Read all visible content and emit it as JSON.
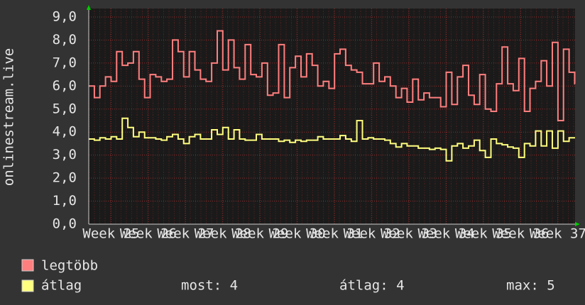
{
  "chart_data": {
    "type": "step-line",
    "y_label": "onlinestream.live",
    "x": [
      24.4,
      24.55,
      24.7,
      24.85,
      25,
      25.15,
      25.3,
      25.45,
      25.6,
      25.75,
      25.9,
      26.05,
      26.2,
      26.35,
      26.5,
      26.65,
      26.8,
      26.95,
      27.1,
      27.25,
      27.4,
      27.55,
      27.7,
      27.85,
      28,
      28.15,
      28.3,
      28.45,
      28.6,
      28.75,
      28.9,
      29.05,
      29.2,
      29.35,
      29.5,
      29.65,
      29.8,
      29.95,
      30.1,
      30.25,
      30.4,
      30.55,
      30.7,
      30.85,
      31,
      31.15,
      31.3,
      31.45,
      31.6,
      31.75,
      31.9,
      32.05,
      32.2,
      32.35,
      32.5,
      32.65,
      32.8,
      32.95,
      33.1,
      33.25,
      33.4,
      33.55,
      33.7,
      33.85,
      34,
      34.15,
      34.3,
      34.45,
      34.6,
      34.75,
      34.9,
      35.05,
      35.2,
      35.35,
      35.5,
      35.65,
      35.8,
      35.95,
      36.1,
      36.25,
      36.4,
      36.55,
      36.7,
      36.85,
      37,
      37.15,
      37.3,
      37.45
    ],
    "series": [
      {
        "name": "legtöbb",
        "color": "#ff7f7f",
        "values": [
          6.0,
          5.5,
          6.0,
          6.4,
          6.2,
          7.5,
          6.9,
          7.0,
          7.5,
          6.3,
          5.5,
          6.5,
          6.4,
          6.2,
          6.3,
          8.0,
          7.5,
          6.4,
          7.5,
          6.7,
          6.3,
          6.2,
          7.0,
          8.4,
          6.7,
          8.0,
          6.8,
          6.3,
          7.8,
          6.5,
          6.4,
          7.0,
          5.6,
          5.7,
          7.8,
          5.5,
          6.8,
          7.3,
          6.4,
          7.4,
          6.9,
          6.0,
          6.2,
          5.9,
          7.4,
          7.6,
          6.9,
          6.7,
          6.6,
          6.1,
          6.1,
          7.0,
          6.2,
          6.4,
          6.0,
          5.5,
          5.9,
          5.3,
          6.3,
          5.4,
          5.7,
          5.5,
          5.5,
          5.1,
          6.6,
          5.2,
          6.4,
          6.9,
          5.6,
          5.2,
          6.5,
          5.0,
          4.9,
          6.1,
          7.7,
          6.1,
          5.8,
          7.2,
          4.9,
          5.9,
          6.2,
          7.1,
          6.0,
          7.9,
          4.5,
          7.6,
          6.6,
          6.1
        ]
      },
      {
        "name": "átlag",
        "color": "#ffff7f",
        "values": [
          3.7,
          3.65,
          3.75,
          3.7,
          3.8,
          3.7,
          4.6,
          4.2,
          3.8,
          4.0,
          3.75,
          3.75,
          3.7,
          3.65,
          3.8,
          3.9,
          3.7,
          3.5,
          3.8,
          3.9,
          3.7,
          3.7,
          4.1,
          3.9,
          4.2,
          3.7,
          4.1,
          3.7,
          3.65,
          3.65,
          3.9,
          3.7,
          3.7,
          3.7,
          3.6,
          3.65,
          3.55,
          3.65,
          3.6,
          3.65,
          3.65,
          3.8,
          3.7,
          3.7,
          3.7,
          3.85,
          3.7,
          3.6,
          4.5,
          3.7,
          3.75,
          3.7,
          3.7,
          3.65,
          3.5,
          3.35,
          3.5,
          3.4,
          3.4,
          3.3,
          3.3,
          3.25,
          3.3,
          3.25,
          2.75,
          3.4,
          3.5,
          3.3,
          3.4,
          3.65,
          3.2,
          2.9,
          3.7,
          3.5,
          3.45,
          3.35,
          3.3,
          2.9,
          3.5,
          3.4,
          4.05,
          3.4,
          4.05,
          3.3,
          4.05,
          3.6,
          3.75,
          3.75
        ]
      }
    ],
    "stats": [
      "most: 4",
      "átlag: 4",
      "max: 5"
    ],
    "xlim": [
      24.4,
      37.46
    ],
    "xticks": [
      {
        "value": 25,
        "label": "Week 25"
      },
      {
        "value": 26,
        "label": "Week 26"
      },
      {
        "value": 27,
        "label": "Week 27"
      },
      {
        "value": 28,
        "label": "Week 28"
      },
      {
        "value": 29,
        "label": "Week 29"
      },
      {
        "value": 30,
        "label": "Week 30"
      },
      {
        "value": 31,
        "label": "Week 31"
      },
      {
        "value": 32,
        "label": "Week 32"
      },
      {
        "value": 33,
        "label": "Week 33"
      },
      {
        "value": 34,
        "label": "Week 34"
      },
      {
        "value": 35,
        "label": "Week 35"
      },
      {
        "value": 36,
        "label": "Week 36"
      },
      {
        "value": 37,
        "label": "Week 37"
      }
    ],
    "ylim": [
      0,
      9
    ],
    "yticks": [
      {
        "value": 0,
        "label": "0,0"
      },
      {
        "value": 1,
        "label": "1,0"
      },
      {
        "value": 2,
        "label": "2,0"
      },
      {
        "value": 3,
        "label": "3,0"
      },
      {
        "value": 4,
        "label": "4,0"
      },
      {
        "value": 5,
        "label": "5,0"
      },
      {
        "value": 6,
        "label": "6,0"
      },
      {
        "value": 7,
        "label": "7,0"
      },
      {
        "value": 8,
        "label": "8,0"
      },
      {
        "value": 9,
        "label": "9,0"
      }
    ],
    "grid": true
  }
}
